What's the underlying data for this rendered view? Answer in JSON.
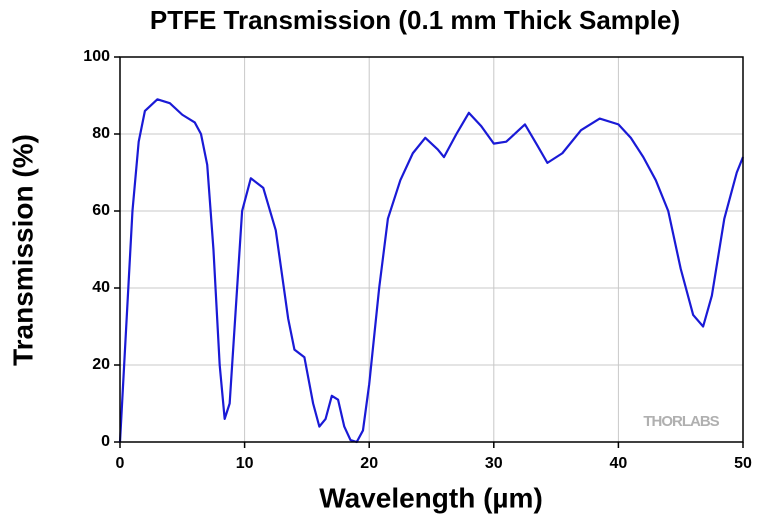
{
  "chart_data": {
    "type": "line",
    "title": "PTFE Transmission (0.1 mm Thick Sample)",
    "xlabel": "Wavelength (µm)",
    "ylabel": "Transmission (%)",
    "watermark": "THORLABS",
    "xlim": [
      0,
      50
    ],
    "xticks": [
      0,
      10,
      20,
      30,
      40,
      50
    ],
    "ylim": [
      0,
      100
    ],
    "yticks": [
      0,
      20,
      40,
      60,
      80,
      100
    ],
    "grid": true,
    "series": [
      {
        "name": "PTFE",
        "color": "#1a1ad6",
        "x": [
          0,
          0.5,
          1,
          1.5,
          2,
          3,
          4,
          5,
          6,
          6.5,
          7,
          7.5,
          8,
          8.4,
          8.8,
          9.3,
          9.8,
          10.5,
          11.5,
          12.5,
          13.5,
          14,
          14.8,
          15.5,
          16,
          16.5,
          17,
          17.5,
          18,
          18.5,
          19,
          19.5,
          20,
          20.8,
          21.5,
          22.5,
          23.5,
          24.5,
          25.5,
          26,
          27,
          28,
          29,
          30,
          31,
          32.5,
          33.5,
          34.3,
          35.5,
          37,
          38.5,
          40,
          41,
          42,
          43,
          44,
          45,
          46,
          46.8,
          47.5,
          48.5,
          49.5,
          50
        ],
        "values": [
          0,
          30,
          60,
          78,
          86,
          89,
          88,
          85,
          83,
          80,
          72,
          50,
          20,
          6,
          10,
          35,
          60,
          68.5,
          66,
          55,
          32,
          24,
          22,
          10,
          4,
          6,
          12,
          11,
          4,
          0.5,
          0,
          3,
          15,
          40,
          58,
          68,
          75,
          79,
          76,
          74,
          80,
          85.5,
          82,
          77.5,
          78,
          82.5,
          77,
          72.5,
          75,
          81,
          84,
          82.5,
          79,
          74,
          68,
          60,
          45,
          33,
          30,
          38,
          58,
          70,
          74
        ]
      }
    ]
  }
}
